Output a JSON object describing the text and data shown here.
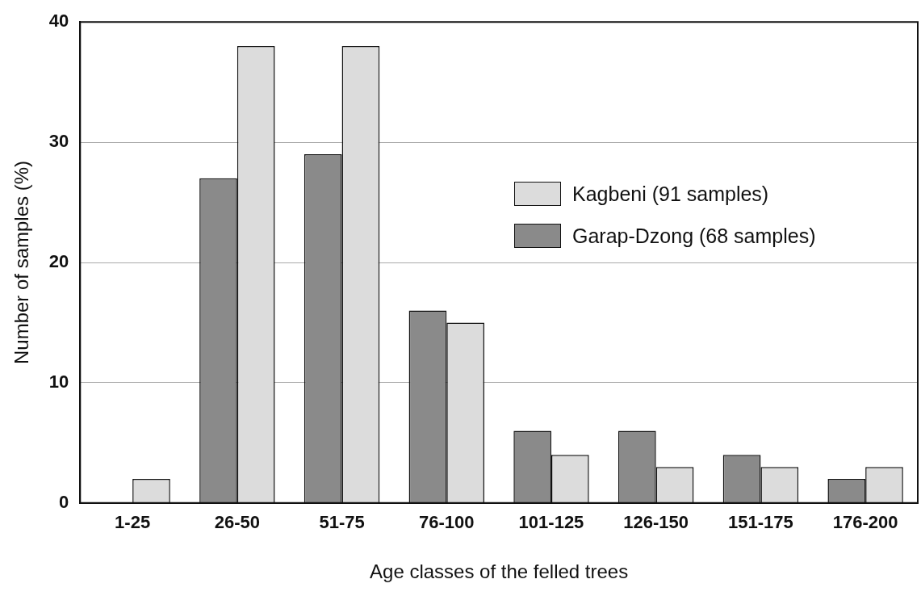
{
  "chart_data": {
    "type": "bar",
    "xlabel": "Age classes of the felled trees",
    "ylabel": "Number of samples (%)",
    "categories": [
      "1-25",
      "26-50",
      "51-75",
      "76-100",
      "101-125",
      "126-150",
      "151-175",
      "176-200"
    ],
    "series": [
      {
        "name": "Garap-Dzong (68 samples)",
        "color": "#8a8a8a",
        "values": [
          0,
          27,
          29,
          16,
          6,
          6,
          4,
          2
        ]
      },
      {
        "name": "Kagbeni (91 samples)",
        "color": "#dcdcdc",
        "values": [
          2,
          38,
          38,
          15,
          4,
          3,
          3,
          3
        ]
      }
    ],
    "ylim": [
      0,
      40
    ],
    "yticks": [
      0,
      10,
      20,
      30,
      40
    ],
    "grid": "y",
    "legend": "right"
  }
}
